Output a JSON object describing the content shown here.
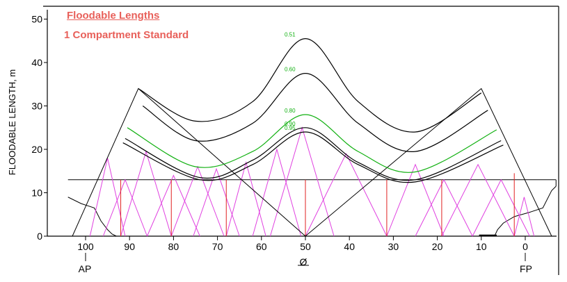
{
  "chart_data": {
    "type": "line",
    "title": "Floodable Lengths",
    "subtitle": "1 Compartment Standard",
    "ylabel": "FLOODABLE LENGTH, m",
    "xlim": [
      106,
      -7
    ],
    "ylim": [
      0,
      52
    ],
    "x_ticks": [
      "100",
      "90",
      "80",
      "70",
      "60",
      "50",
      "40",
      "30",
      "20",
      "10",
      "0"
    ],
    "y_ticks": [
      "0",
      "10",
      "20",
      "30",
      "40",
      "50"
    ],
    "station_labels": {
      "aft": "AP",
      "mid": "Ø",
      "fwd": "FP"
    },
    "colors": {
      "curve": "#000000",
      "green_curve": "#10b010",
      "triangle": "#e040e0",
      "bulkhead": "#e02020",
      "title": "#e8605a"
    },
    "triangle_boundary": [
      [
        103,
        0
      ],
      [
        88,
        34
      ],
      [
        50,
        0
      ],
      [
        10,
        34
      ],
      [
        -6,
        0
      ]
    ],
    "margin_line_deck": {
      "y": 13,
      "x_from": 104,
      "x_to": -7
    },
    "curves": [
      {
        "label": "0.51",
        "color": "#000000",
        "points": [
          [
            88,
            34
          ],
          [
            75,
            26.5
          ],
          [
            62,
            31
          ],
          [
            50,
            45.5
          ],
          [
            38,
            31
          ],
          [
            25,
            24
          ],
          [
            10,
            33
          ]
        ]
      },
      {
        "label": "0.60",
        "color": "#000000",
        "points": [
          [
            87,
            30
          ],
          [
            75,
            22
          ],
          [
            62,
            26
          ],
          [
            50,
            37.5
          ],
          [
            38,
            26
          ],
          [
            25,
            19.5
          ],
          [
            8.5,
            29
          ]
        ]
      },
      {
        "label": "0.80",
        "color": "#10b010",
        "points": [
          [
            90.5,
            25
          ],
          [
            75,
            16
          ],
          [
            62,
            19.5
          ],
          [
            50,
            28
          ],
          [
            38,
            19.5
          ],
          [
            25,
            14.8
          ],
          [
            6.5,
            24.5
          ]
        ]
      },
      {
        "label": "0.90",
        "color": "#000000",
        "points": [
          [
            91,
            22.5
          ],
          [
            74,
            13.5
          ],
          [
            62,
            17.5
          ],
          [
            50,
            25
          ],
          [
            38,
            17
          ],
          [
            25,
            13
          ],
          [
            5.5,
            22
          ]
        ]
      },
      {
        "label": "0.95",
        "color": "#000000",
        "points": [
          [
            91.5,
            21.5
          ],
          [
            74,
            13
          ],
          [
            62,
            16.5
          ],
          [
            50,
            24
          ],
          [
            38,
            16.5
          ],
          [
            25,
            12.5
          ],
          [
            5,
            21
          ]
        ]
      }
    ],
    "bulkheads": [
      {
        "x": 92,
        "h": 13
      },
      {
        "x": 80.5,
        "h": 13
      },
      {
        "x": 68,
        "h": 13
      },
      {
        "x": 50,
        "h": 13
      },
      {
        "x": 31.5,
        "h": 13
      },
      {
        "x": 19,
        "h": 13
      },
      {
        "x": 2.5,
        "h": 14.5
      }
    ],
    "compartment_triangles": [
      [
        99,
        18,
        91
      ],
      [
        96,
        13,
        86
      ],
      [
        92,
        19.5,
        80.5
      ],
      [
        86,
        14,
        74
      ],
      [
        80.5,
        16,
        68.5
      ],
      [
        75.5,
        15.5,
        65
      ],
      [
        68,
        17,
        59
      ],
      [
        62,
        20,
        51
      ],
      [
        58,
        25,
        43.5
      ],
      [
        50,
        19,
        31.5
      ],
      [
        31.5,
        16.5,
        18.5
      ],
      [
        25,
        13,
        12
      ],
      [
        19,
        16.5,
        2.5
      ],
      [
        12,
        13,
        -1
      ],
      [
        2.5,
        9,
        -2
      ]
    ],
    "midship_marker_x": 50,
    "aft_profile": [
      [
        104,
        9
      ],
      [
        101,
        7.5
      ],
      [
        98,
        6.5
      ],
      [
        96.5,
        3.5
      ],
      [
        95,
        1.5
      ],
      [
        94,
        0.5
      ],
      [
        93,
        0
      ]
    ],
    "fwd_profile": [
      [
        7,
        0
      ],
      [
        6.3,
        1.5
      ],
      [
        5,
        3
      ],
      [
        2.5,
        4.5
      ],
      [
        -1,
        5.5
      ],
      [
        -4,
        6.5
      ],
      [
        -6,
        10.5
      ],
      [
        -7,
        11.5
      ]
    ]
  }
}
